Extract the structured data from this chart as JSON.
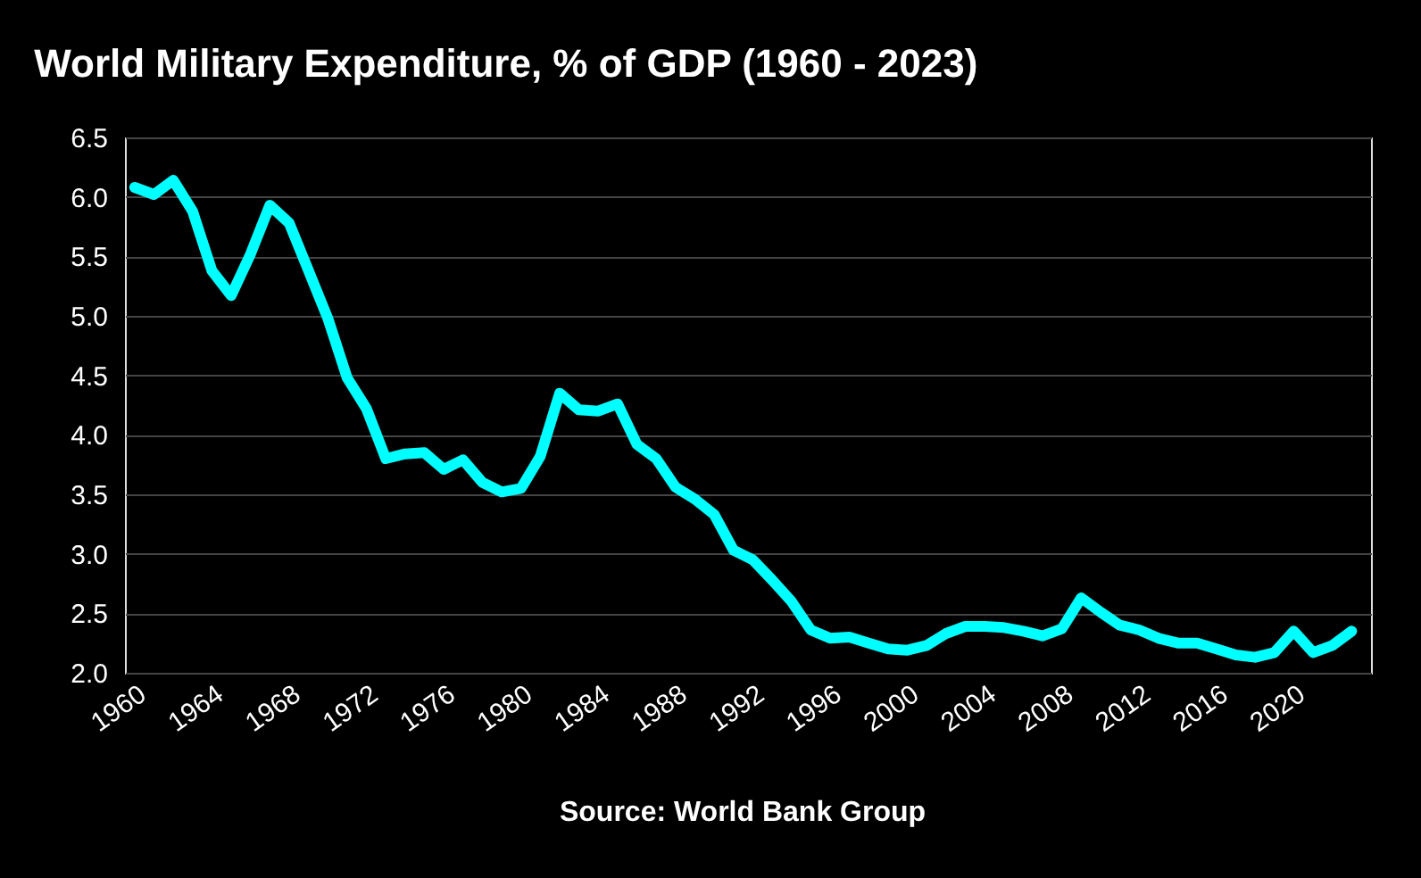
{
  "chart_data": {
    "type": "line",
    "title": "World Military Expenditure, % of GDP (1960 - 2023)",
    "x": [
      1960,
      1961,
      1962,
      1963,
      1964,
      1965,
      1966,
      1967,
      1968,
      1969,
      1970,
      1971,
      1972,
      1973,
      1974,
      1975,
      1976,
      1977,
      1978,
      1979,
      1980,
      1981,
      1982,
      1983,
      1984,
      1985,
      1986,
      1987,
      1988,
      1989,
      1990,
      1991,
      1992,
      1993,
      1994,
      1995,
      1996,
      1997,
      1998,
      1999,
      2000,
      2001,
      2002,
      2003,
      2004,
      2005,
      2006,
      2007,
      2008,
      2009,
      2010,
      2011,
      2012,
      2013,
      2014,
      2015,
      2016,
      2017,
      2018,
      2019,
      2020,
      2021,
      2022,
      2023
    ],
    "series": [
      {
        "color": "#00ffff",
        "values": [
          6.08,
          6.02,
          6.14,
          5.88,
          5.38,
          5.17,
          5.52,
          5.93,
          5.78,
          5.38,
          4.98,
          4.48,
          4.22,
          3.8,
          3.84,
          3.85,
          3.71,
          3.79,
          3.6,
          3.52,
          3.55,
          3.82,
          4.35,
          4.21,
          4.2,
          4.26,
          3.92,
          3.8,
          3.56,
          3.46,
          3.33,
          3.03,
          2.95,
          2.78,
          2.6,
          2.36,
          2.29,
          2.3,
          2.25,
          2.2,
          2.19,
          2.23,
          2.33,
          2.39,
          2.39,
          2.38,
          2.35,
          2.31,
          2.37,
          2.63,
          2.51,
          2.4,
          2.36,
          2.29,
          2.25,
          2.25,
          2.2,
          2.15,
          2.13,
          2.17,
          2.35,
          2.17,
          2.23,
          2.35
        ]
      }
    ],
    "xlim": [
      1959.5,
      2024
    ],
    "xticks": [
      1960,
      1964,
      1968,
      1972,
      1976,
      1980,
      1984,
      1988,
      1992,
      1996,
      2000,
      2004,
      2008,
      2012,
      2016,
      2020
    ],
    "ylim": [
      2.0,
      6.5
    ],
    "yticks": [
      {
        "value": 2.0,
        "label": "2.0"
      },
      {
        "value": 2.5,
        "label": "2.5"
      },
      {
        "value": 3.0,
        "label": "3.0"
      },
      {
        "value": 3.5,
        "label": "3.5"
      },
      {
        "value": 4.0,
        "label": "4.0"
      },
      {
        "value": 4.5,
        "label": "4.5"
      },
      {
        "value": 5.0,
        "label": "5.0"
      },
      {
        "value": 5.5,
        "label": "5.5"
      },
      {
        "value": 6.0,
        "label": "6.0"
      },
      {
        "value": 6.5,
        "label": "6.5"
      }
    ],
    "grid": "y",
    "legend": false,
    "marker": "none",
    "line_style": "solid",
    "annotations": [
      "Source: World Bank Group"
    ]
  }
}
